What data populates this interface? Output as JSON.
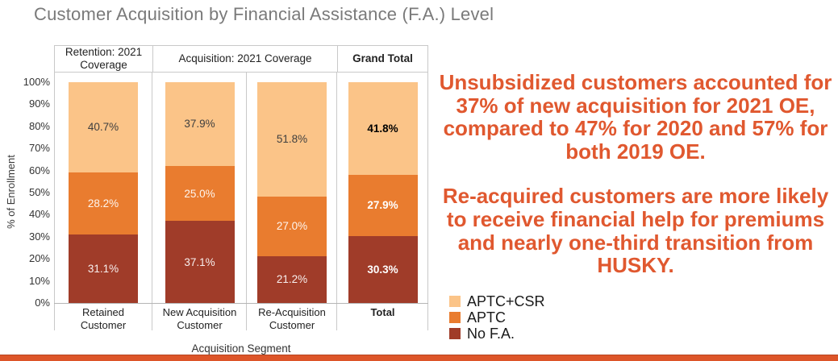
{
  "title": "Customer Acquisition by Financial Assistance (F.A.) Level",
  "colors": {
    "aptc_csr": "#FBC488",
    "aptc": "#E97C2F",
    "no_fa": "#A03C29",
    "callout_text": "#E0582F",
    "footer_band": "#DD5529",
    "title_text": "#7A7A7A"
  },
  "chart_data": {
    "type": "bar",
    "stacked": true,
    "title": "",
    "ylabel": "% of Enrollment",
    "xlabel": "Acquisition Segment",
    "ylim": [
      0,
      100
    ],
    "grid": false,
    "legend_position": "bottom-right",
    "yticks": [
      "0%",
      "10%",
      "20%",
      "30%",
      "40%",
      "50%",
      "60%",
      "70%",
      "80%",
      "90%",
      "100%"
    ],
    "group_headers": [
      "Retention: 2021\nCoverage",
      "Acquisition: 2021 Coverage",
      "Grand Total"
    ],
    "categories": [
      "Retained\nCustomer",
      "New Acquisition\nCustomer",
      "Re-Acquisition\nCustomer",
      "Total"
    ],
    "series": [
      {
        "name": "APTC+CSR",
        "color": "#FBC488",
        "values": [
          40.7,
          37.9,
          51.8,
          41.8
        ]
      },
      {
        "name": "APTC",
        "color": "#E97C2F",
        "values": [
          28.2,
          25.0,
          27.0,
          27.9
        ]
      },
      {
        "name": "No F.A.",
        "color": "#A03C29",
        "values": [
          31.1,
          37.1,
          21.2,
          30.3
        ]
      }
    ]
  },
  "callouts": {
    "para1": "Unsubsidized customers accounted for 37% of new acquisition for 2021 OE, compared to 47% for 2020 and 57% for both 2019 OE.",
    "para2": "Re-acquired customers are more likely to receive financial help for premiums and nearly one-third transition from HUSKY."
  }
}
